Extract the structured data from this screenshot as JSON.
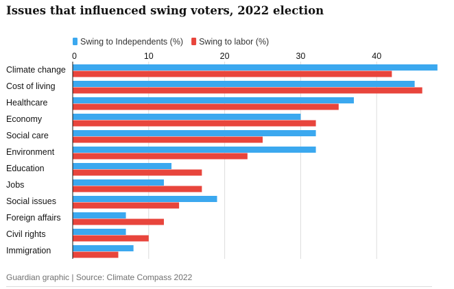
{
  "title": "Issues that influenced swing voters, 2022 election",
  "footer": "Guardian graphic | Source: Climate Compass 2022",
  "chart_data": {
    "type": "bar",
    "orientation": "horizontal",
    "categories": [
      "Climate change",
      "Cost of living",
      "Healthcare",
      "Economy",
      "Social care",
      "Environment",
      "Education",
      "Jobs",
      "Social issues",
      "Foreign affairs",
      "Civil rights",
      "Immigration"
    ],
    "series": [
      {
        "name": "Swing to Independents (%)",
        "color": "#3ba8ef",
        "values": [
          48,
          45,
          37,
          30,
          32,
          32,
          13,
          12,
          19,
          7,
          7,
          8
        ]
      },
      {
        "name": "Swing to labor (%)",
        "color": "#e8453c",
        "values": [
          42,
          46,
          35,
          32,
          25,
          23,
          17,
          17,
          14,
          12,
          10,
          6
        ]
      }
    ],
    "xlim": [
      0,
      47.2
    ],
    "xticks": [
      0,
      10,
      20,
      30,
      40
    ],
    "legend_position": "top",
    "grid": "vertical-ticks"
  }
}
